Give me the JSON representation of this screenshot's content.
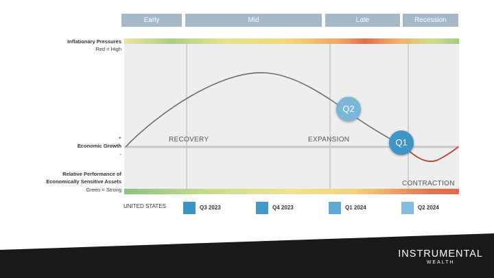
{
  "phases": [
    {
      "label": "Early"
    },
    {
      "label": "Mid"
    },
    {
      "label": "Late"
    },
    {
      "label": "Recession"
    }
  ],
  "left_labels": {
    "inflation_title": "Inflationary Pressures",
    "inflation_sub": "Red = High",
    "plus": "+",
    "growth": "Economic Growth",
    "minus": "-",
    "relative_line1": "Relative Performance of",
    "relative_line2": "Economically Sensitive Assets",
    "relative_sub": "Green = Strong"
  },
  "regions": {
    "recovery": "RECOVERY",
    "expansion": "EXPANSION",
    "contraction": "CONTRACTION"
  },
  "markers": [
    {
      "label": "Q2",
      "color": "#7ab6da"
    },
    {
      "label": "Q1",
      "color": "#3f95c6"
    }
  ],
  "legend": {
    "title": "UNITED STATES",
    "items": [
      {
        "label": "Q3 2023",
        "color": "#3a93c6"
      },
      {
        "label": "Q4 2023",
        "color": "#4399ca"
      },
      {
        "label": "Q1 2024",
        "color": "#5da8d4"
      },
      {
        "label": "Q2 2024",
        "color": "#82bde0"
      }
    ]
  },
  "brand": {
    "name": "INSTRUMENTAL",
    "sub": "WEALTH"
  },
  "colors": {
    "phase_bar": "#a6b7c7",
    "plot_background": "#eeeeee",
    "curve": "#6b6b6b",
    "recession_curve": "#c0392b",
    "footer_band": "#1a1a1a"
  }
}
